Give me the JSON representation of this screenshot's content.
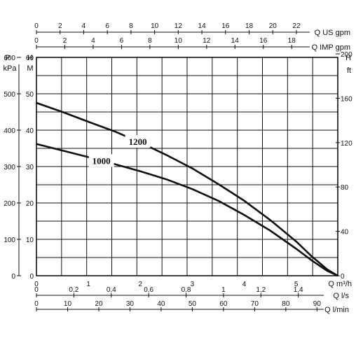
{
  "chart_data": {
    "type": "line",
    "title": "",
    "x_primary": {
      "label": "Q m³/h",
      "range": [
        0,
        5.8
      ],
      "ticks": [
        "0",
        "1",
        "2",
        "3",
        "4",
        "5"
      ]
    },
    "y_primary": {
      "label": "H",
      "unit": "M",
      "range": [
        0,
        60
      ],
      "ticks": [
        "0",
        "10",
        "20",
        "30",
        "40",
        "50",
        "60"
      ]
    },
    "y_secondary_left": {
      "label": "P",
      "unit": "kPa",
      "range": [
        0,
        600
      ],
      "ticks": [
        "0",
        "100",
        "200",
        "300",
        "400",
        "500",
        "600"
      ]
    },
    "y_secondary_right": {
      "label": "H",
      "unit": "ft",
      "range": [
        0,
        200
      ],
      "ticks": [
        "0",
        "40",
        "80",
        "120",
        "160",
        "200"
      ]
    },
    "top_axes": [
      {
        "label": "Q US gpm",
        "max": 25.5,
        "ticks": [
          "0",
          "2",
          "4",
          "6",
          "8",
          "10",
          "12",
          "14",
          "16",
          "18",
          "20",
          "22"
        ]
      },
      {
        "label": "Q IMP gpm",
        "max": 21.25,
        "ticks": [
          "0",
          "2",
          "4",
          "6",
          "8",
          "10",
          "12",
          "14",
          "16",
          "18"
        ]
      }
    ],
    "bottom_axes": [
      {
        "label": "Q l/s",
        "max": 1.611,
        "ticks": [
          "0",
          "0,2",
          "0,4",
          "0,6",
          "0,8",
          "1",
          "1,2",
          "1,4"
        ]
      },
      {
        "label": "Q l/min",
        "max": 96.67,
        "ticks": [
          "0",
          "10",
          "20",
          "30",
          "40",
          "50",
          "60",
          "70",
          "80",
          "90"
        ]
      }
    ],
    "grid": true,
    "series": [
      {
        "name": "1200",
        "x": [
          0,
          0.5,
          1,
          1.5,
          2,
          2.5,
          3,
          3.5,
          4,
          4.5,
          5,
          5.3,
          5.6,
          5.8
        ],
        "y": [
          47.5,
          45,
          42.3,
          39.7,
          36.6,
          33.2,
          29.5,
          25.2,
          20.6,
          15.3,
          9.4,
          5.3,
          1.7,
          0
        ]
      },
      {
        "name": "1000",
        "x": [
          0,
          0.5,
          1,
          1.5,
          2,
          2.5,
          3,
          3.5,
          4,
          4.5,
          5,
          5.3,
          5.6,
          5.8
        ],
        "y": [
          36.2,
          34.4,
          32.6,
          30.7,
          28.7,
          26.5,
          23.8,
          20.6,
          16.7,
          12.4,
          7.4,
          4.2,
          1.3,
          0
        ]
      }
    ]
  }
}
